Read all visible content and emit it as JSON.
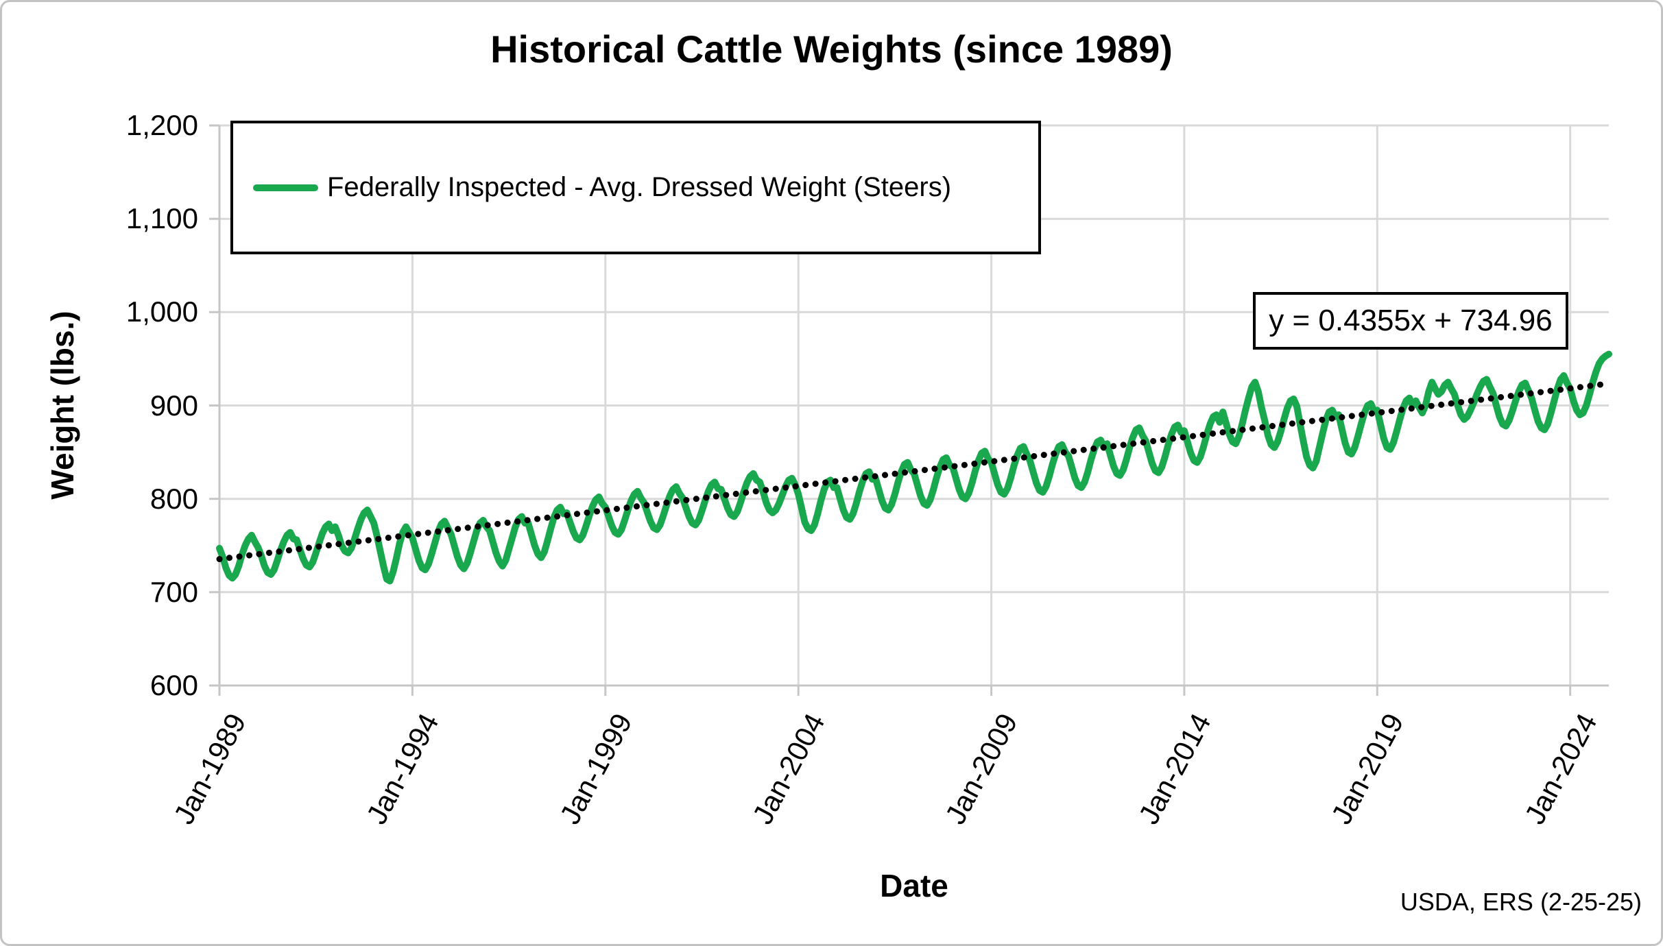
{
  "colors": {
    "series_green": "#1aa84e",
    "trendline": "#000000",
    "gridline": "#d9d9d9",
    "axis_line": "#c6c6c6",
    "text": "#000000",
    "frame_border": "#c3c3c3"
  },
  "chart_data": {
    "type": "line",
    "title": "Historical Cattle Weights (since 1989)",
    "xlabel": "Date",
    "ylabel": "Weight (lbs.)",
    "source_note": "USDA, ERS (2-25-25)",
    "ylim": [
      600,
      1200
    ],
    "grid": true,
    "legend_position": "top-left-inside",
    "y_ticks": [
      600,
      700,
      800,
      900,
      1000,
      1100,
      1200
    ],
    "y_tick_labels": [
      "600",
      "700",
      "800",
      "900",
      "1,000",
      "1,100",
      "1,200"
    ],
    "x_tick_labels": [
      "Jan-1989",
      "Jan-1994",
      "Jan-1999",
      "Jan-2004",
      "Jan-2009",
      "Jan-2014",
      "Jan-2019",
      "Jan-2024"
    ],
    "x_tick_month_indices": [
      0,
      60,
      120,
      180,
      240,
      300,
      360,
      420
    ],
    "x_start": "Jan-1989",
    "x_end": "Jan-2025",
    "x_interval": "monthly",
    "trendline": {
      "equation_label": "y = 0.4355x + 734.96",
      "slope": 0.4355,
      "intercept": 734.96,
      "style": "dotted",
      "color": "#000000"
    },
    "series": [
      {
        "name": "Federally Inspected - Avg. Dressed Weight (Steers)",
        "color": "#1aa84e",
        "values": [
          747,
          738,
          726,
          718,
          715,
          719,
          728,
          740,
          750,
          757,
          761,
          754,
          748,
          739,
          728,
          721,
          719,
          724,
          734,
          745,
          754,
          761,
          764,
          757,
          756,
          746,
          736,
          729,
          727,
          732,
          742,
          753,
          763,
          770,
          773,
          766,
          770,
          761,
          750,
          744,
          742,
          747,
          757,
          768,
          778,
          785,
          788,
          781,
          774,
          760,
          744,
          728,
          714,
          712,
          722,
          736,
          752,
          764,
          770,
          764,
          758,
          746,
          734,
          726,
          724,
          730,
          741,
          753,
          765,
          773,
          776,
          769,
          762,
          750,
          738,
          729,
          725,
          731,
          742,
          754,
          766,
          774,
          777,
          770,
          766,
          754,
          742,
          733,
          728,
          734,
          746,
          758,
          770,
          778,
          781,
          774,
          774,
          762,
          750,
          741,
          737,
          743,
          755,
          768,
          780,
          788,
          791,
          784,
          785,
          775,
          765,
          758,
          756,
          761,
          771,
          782,
          792,
          799,
          802,
          795,
          791,
          781,
          771,
          764,
          762,
          767,
          777,
          788,
          798,
          805,
          808,
          801,
          796,
          786,
          776,
          769,
          767,
          772,
          782,
          793,
          803,
          810,
          813,
          806,
          801,
          791,
          781,
          774,
          772,
          777,
          787,
          798,
          808,
          815,
          818,
          811,
          810,
          800,
          790,
          783,
          781,
          786,
          796,
          807,
          817,
          824,
          827,
          820,
          818,
          808,
          796,
          788,
          785,
          788,
          795,
          804,
          813,
          820,
          822,
          815,
          805,
          790,
          775,
          768,
          766,
          772,
          784,
          798,
          810,
          818,
          820,
          812,
          812,
          800,
          788,
          780,
          778,
          784,
          795,
          808,
          819,
          827,
          829,
          821,
          822,
          810,
          798,
          790,
          788,
          794,
          805,
          818,
          829,
          837,
          839,
          831,
          827,
          815,
          803,
          795,
          793,
          799,
          810,
          823,
          834,
          842,
          844,
          836,
          834,
          822,
          810,
          802,
          800,
          806,
          817,
          830,
          841,
          849,
          851,
          843,
          839,
          827,
          815,
          807,
          805,
          811,
          822,
          835,
          846,
          854,
          856,
          848,
          841,
          829,
          817,
          809,
          807,
          813,
          824,
          837,
          848,
          856,
          858,
          850,
          846,
          834,
          822,
          814,
          812,
          818,
          829,
          842,
          853,
          861,
          863,
          855,
          859,
          847,
          835,
          827,
          825,
          831,
          842,
          855,
          866,
          874,
          876,
          868,
          862,
          850,
          838,
          830,
          828,
          834,
          845,
          858,
          869,
          877,
          879,
          871,
          873,
          861,
          849,
          841,
          839,
          845,
          856,
          869,
          880,
          888,
          890,
          882,
          893,
          881,
          869,
          861,
          859,
          867,
          880,
          895,
          908,
          920,
          925,
          915,
          898,
          884,
          868,
          858,
          855,
          861,
          872,
          885,
          897,
          905,
          907,
          899,
          880,
          862,
          845,
          836,
          833,
          840,
          855,
          870,
          884,
          893,
          895,
          888,
          890,
          875,
          860,
          850,
          848,
          855,
          867,
          880,
          892,
          900,
          902,
          894,
          895,
          880,
          865,
          855,
          853,
          860,
          872,
          885,
          897,
          905,
          908,
          900,
          905,
          898,
          892,
          900,
          915,
          925,
          918,
          912,
          915,
          922,
          925,
          918,
          912,
          900,
          890,
          885,
          888,
          895,
          903,
          912,
          920,
          926,
          928,
          920,
          913,
          900,
          888,
          880,
          878,
          884,
          894,
          905,
          915,
          922,
          924,
          916,
          908,
          895,
          883,
          876,
          874,
          880,
          892,
          905,
          918,
          928,
          932,
          924,
          918,
          905,
          895,
          890,
          892,
          900,
          912,
          925,
          936,
          945,
          950,
          953,
          955
        ]
      }
    ]
  }
}
